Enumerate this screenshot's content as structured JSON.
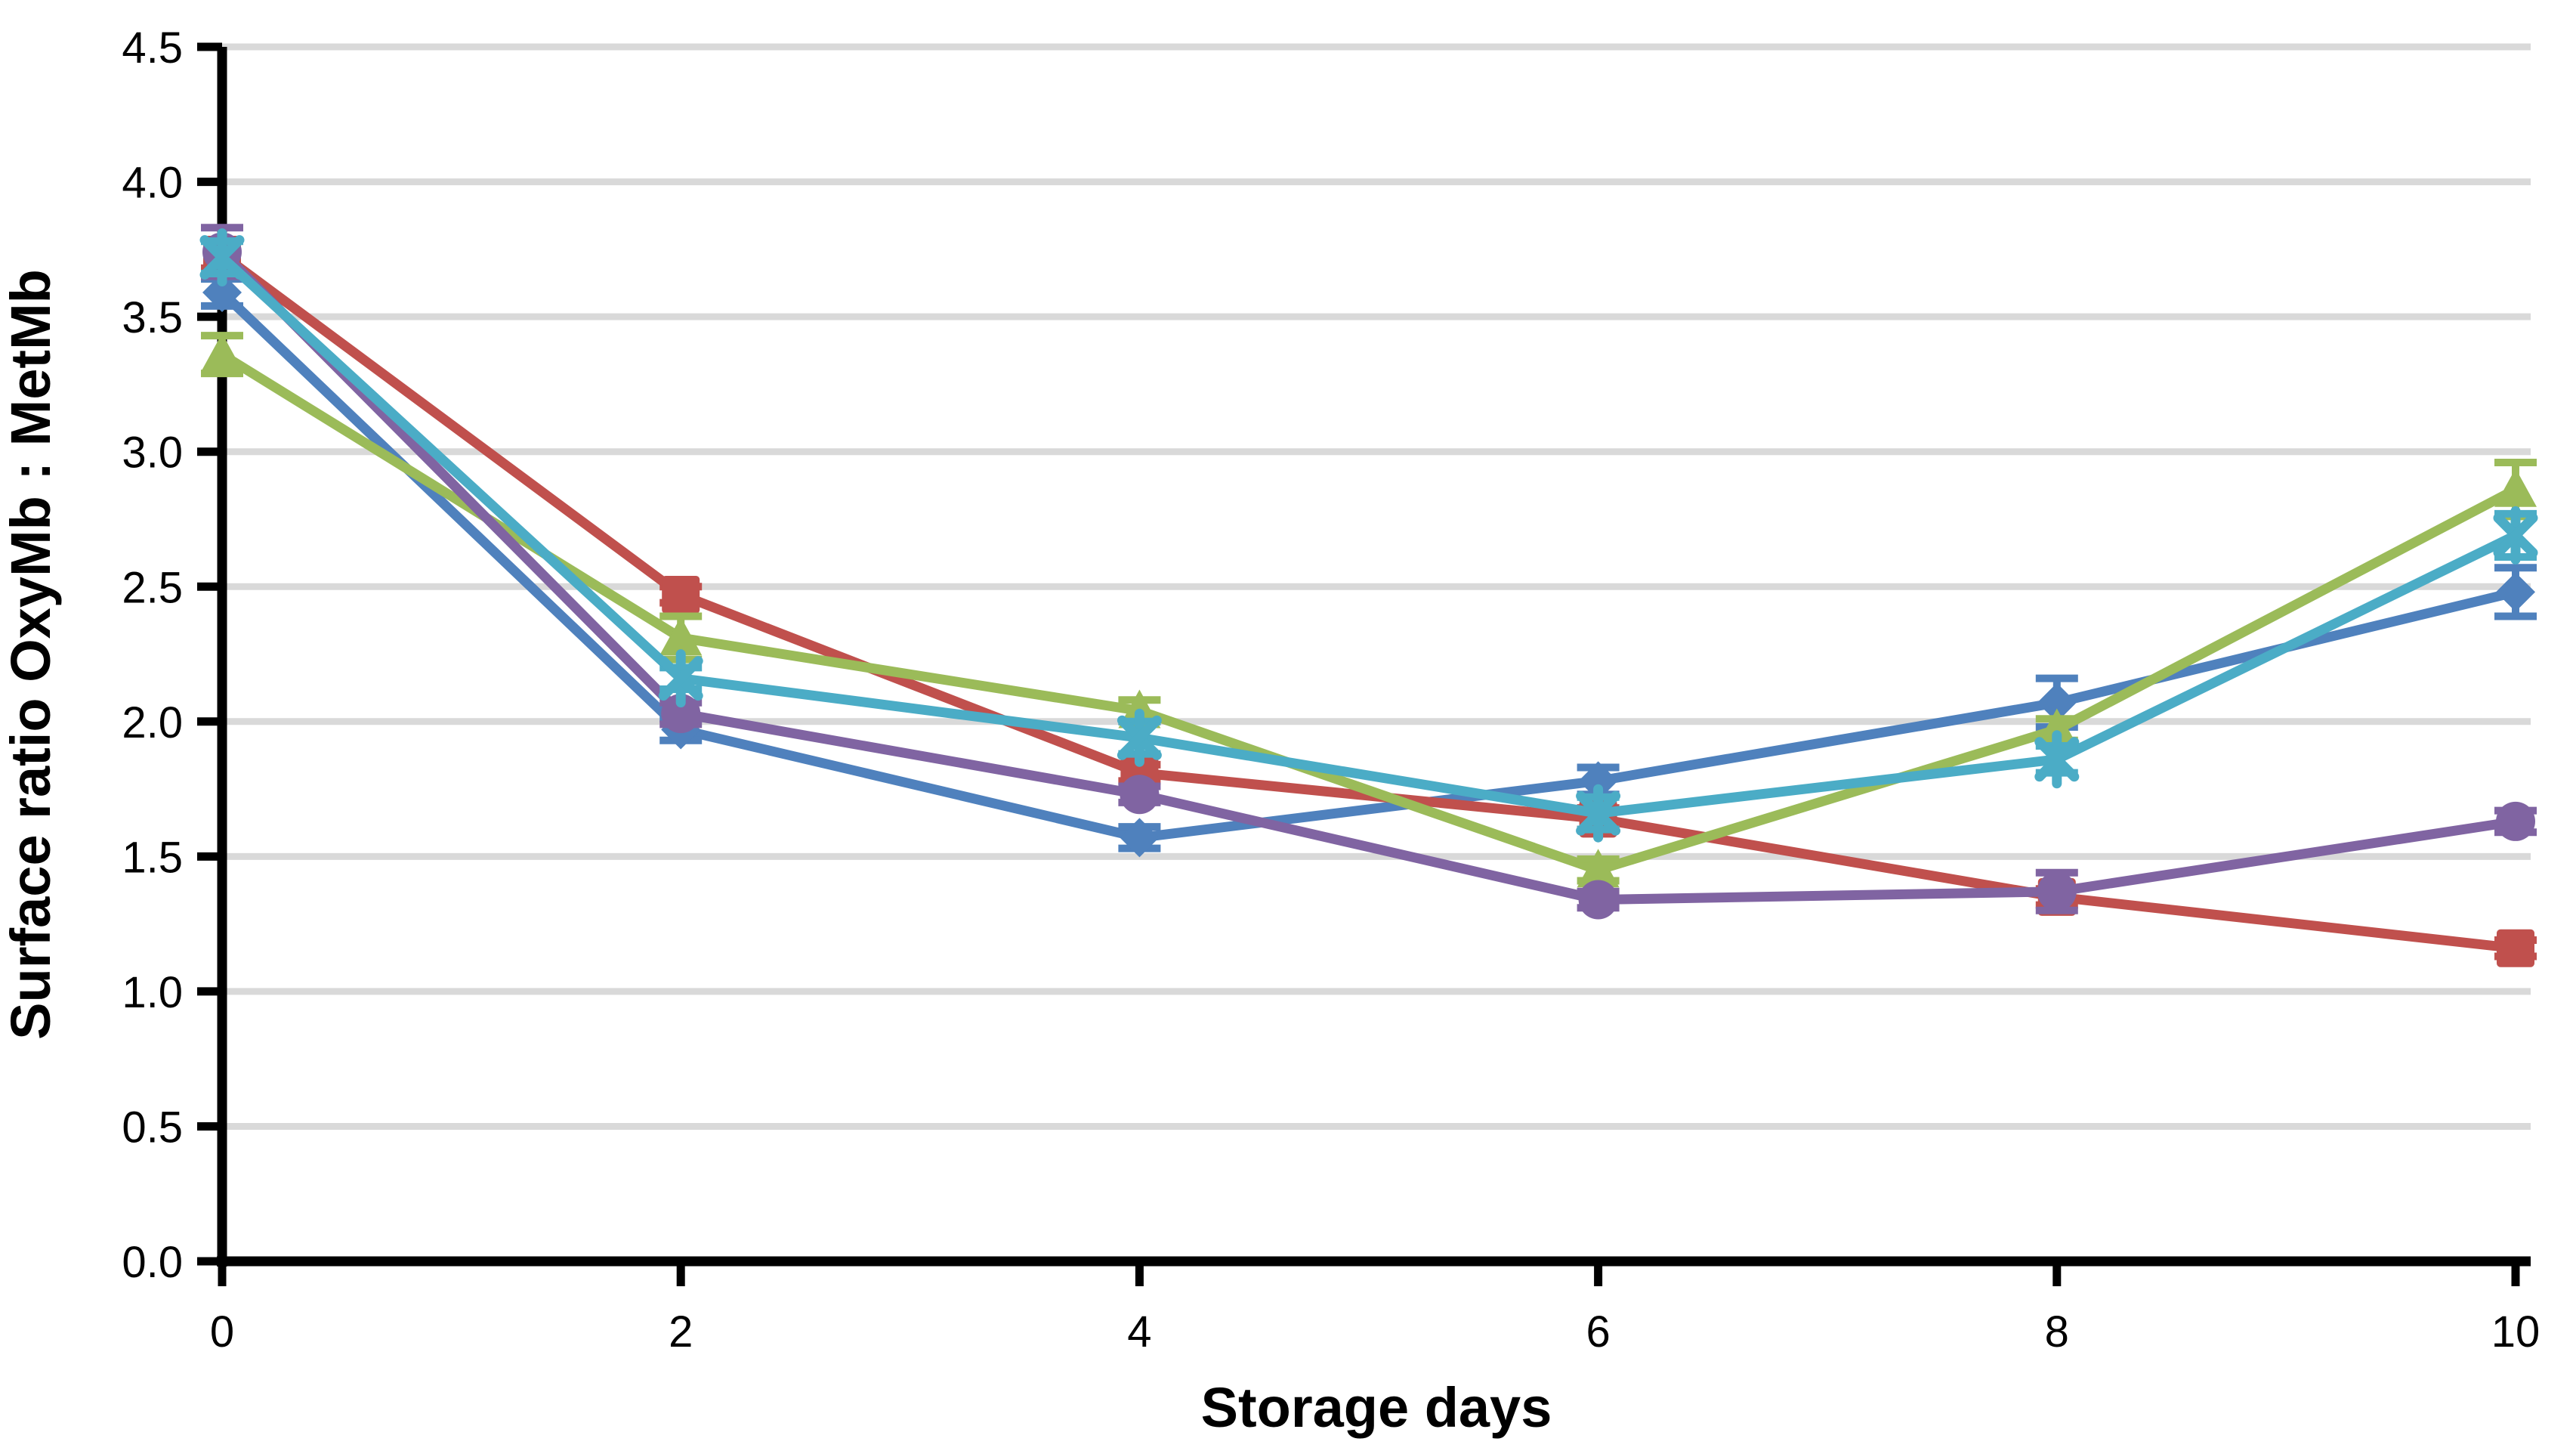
{
  "chart_data": {
    "type": "line",
    "title": "",
    "xlabel": "Storage days",
    "ylabel": "Surface ratio OxyMb : MetMb",
    "x": [
      0,
      2,
      4,
      6,
      8,
      10
    ],
    "xtick_labels": [
      "0",
      "2",
      "4",
      "6",
      "8",
      "10"
    ],
    "ytick_labels": [
      "0.0",
      "0.5",
      "1.0",
      "1.5",
      "2.0",
      "2.5",
      "3.0",
      "3.5",
      "4.0",
      "4.5"
    ],
    "xlim": [
      0,
      10
    ],
    "ylim": [
      0.0,
      4.5
    ],
    "grid": "horizontal-only",
    "legend_position": "none",
    "colors": {
      "background": "#FFFFFF",
      "gridline": "#D9D9D9",
      "axis": "#000000"
    },
    "series": [
      {
        "name": "blue-diamond",
        "marker": "diamond",
        "color": "#4F81BD",
        "values": [
          3.59,
          1.97,
          1.57,
          1.78,
          2.07,
          2.48
        ],
        "errors": [
          0.05,
          0.04,
          0.04,
          0.05,
          0.09,
          0.09
        ]
      },
      {
        "name": "red-square",
        "marker": "square",
        "color": "#C0504D",
        "values": [
          3.73,
          2.47,
          1.81,
          1.64,
          1.35,
          1.16
        ],
        "errors": [
          0.05,
          0.03,
          0.03,
          0.04,
          0.03,
          0.03
        ]
      },
      {
        "name": "green-triangle",
        "marker": "triangle",
        "color": "#9BBB59",
        "values": [
          3.36,
          2.31,
          2.04,
          1.45,
          1.97,
          2.86
        ],
        "errors": [
          0.07,
          0.08,
          0.04,
          0.04,
          0.04,
          0.1
        ]
      },
      {
        "name": "purple-circle",
        "marker": "circle",
        "color": "#8064A2",
        "values": [
          3.74,
          2.03,
          1.73,
          1.34,
          1.37,
          1.63
        ],
        "errors": [
          0.09,
          0.04,
          0.03,
          0.03,
          0.07,
          0.04
        ]
      },
      {
        "name": "cyan-asterisk",
        "marker": "asterisk",
        "color": "#4BACC6",
        "values": [
          3.72,
          2.16,
          1.94,
          1.66,
          1.86,
          2.69
        ],
        "errors": [
          0.06,
          0.04,
          0.06,
          0.06,
          0.05,
          0.08
        ]
      }
    ]
  }
}
